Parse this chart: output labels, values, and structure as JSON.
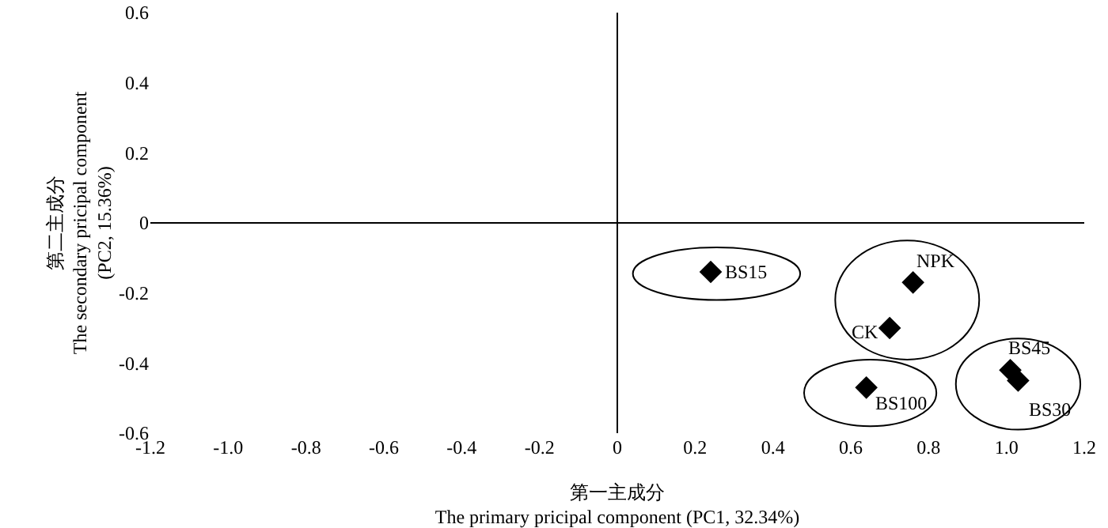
{
  "chart_data": {
    "type": "scatter",
    "xlabel": "第一主成分\nThe primary pricipal component (PC1, 32.34%)",
    "ylabel": "第二主成分\nThe secondary pricipal component\n(PC2, 15.36%)",
    "x": [
      0.24,
      0.76,
      0.7,
      1.01,
      1.03,
      0.64
    ],
    "values": [
      -0.14,
      -0.17,
      -0.3,
      -0.42,
      -0.45,
      -0.47
    ],
    "color": "#000000",
    "marker": "diamond",
    "annotations": [
      {
        "text": "BS15",
        "x": 0.24,
        "y": -0.14
      },
      {
        "text": "NPK",
        "x": 0.76,
        "y": -0.17
      },
      {
        "text": "CK",
        "x": 0.7,
        "y": -0.3
      },
      {
        "text": "BS45",
        "x": 1.01,
        "y": -0.42
      },
      {
        "text": "BS30",
        "x": 1.03,
        "y": -0.45
      },
      {
        "text": "BS100",
        "x": 0.64,
        "y": -0.47
      }
    ],
    "xlim": [
      -1.2,
      1.2
    ],
    "xticks": [
      {
        "value": -1.2,
        "label": "-1.2"
      },
      {
        "value": -1,
        "label": "-1.0"
      },
      {
        "value": -0.8,
        "label": "-0.8"
      },
      {
        "value": -0.6,
        "label": "-0.6"
      },
      {
        "value": -0.4,
        "label": "-0.4"
      },
      {
        "value": -0.2,
        "label": "-0.2"
      },
      0,
      0.2,
      0.4,
      0.6,
      0.8,
      {
        "value": 1,
        "label": "1.0"
      },
      1.2
    ],
    "ylim": [
      -0.6,
      0.6
    ],
    "yticks": [
      -0.6,
      -0.4,
      -0.2,
      0,
      0.2,
      0.4,
      0.6
    ]
  }
}
